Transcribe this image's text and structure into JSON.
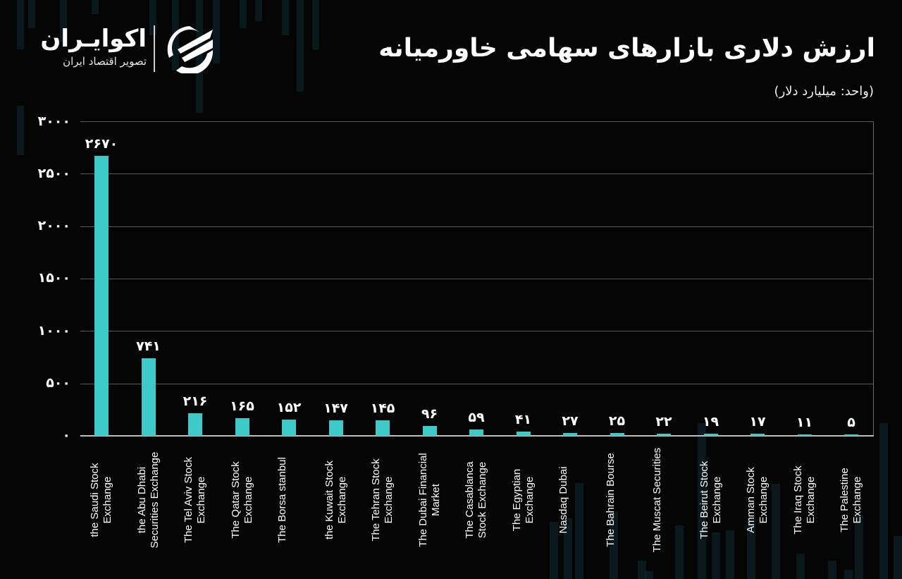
{
  "header": {
    "title": "ارزش دلاری بازارهای سهامی خاورمیانه",
    "subtitle": "(واحد: میلیارد دلار)"
  },
  "logo": {
    "name": "اکوایـران",
    "tagline": "تصویر اقتصاد ایران",
    "icon": "ecoiran-swoosh-logo-icon"
  },
  "colors": {
    "background": "#050505",
    "bar": "#3ec9c9",
    "text": "#ffffff",
    "grid": "#5a5a5a"
  },
  "yaxis": {
    "ticks": [
      {
        "value": 3000,
        "label": "۳۰۰۰"
      },
      {
        "value": 2500,
        "label": "۲۵۰۰"
      },
      {
        "value": 2000,
        "label": "۲۰۰۰"
      },
      {
        "value": 1500,
        "label": "۱۵۰۰"
      },
      {
        "value": 1000,
        "label": "۱۰۰۰"
      },
      {
        "value": 500,
        "label": "۵۰۰"
      },
      {
        "value": 0,
        "label": "۰"
      }
    ]
  },
  "bars": [
    {
      "name": "the Saudi Stock Exchange",
      "value": 2670,
      "label": "۲۶۷۰"
    },
    {
      "name": "the Abu Dhabi Securities Exchange",
      "value": 741,
      "label": "۷۴۱"
    },
    {
      "name": "The Tel Aviv Stock Exchange",
      "value": 216,
      "label": "۲۱۶"
    },
    {
      "name": "The Qatar Stock Exchange",
      "value": 165,
      "label": "۱۶۵"
    },
    {
      "name": "The Borsa stanbul",
      "value": 152,
      "label": "۱۵۲"
    },
    {
      "name": "the Kuwait Stock Exchange",
      "value": 147,
      "label": "۱۴۷"
    },
    {
      "name": "The Tehran Stock Exchange",
      "value": 145,
      "label": "۱۴۵"
    },
    {
      "name": "The Dubai Financial Market",
      "value": 96,
      "label": "۹۶"
    },
    {
      "name": "The Casablanca Stock Exchange",
      "value": 59,
      "label": "۵۹"
    },
    {
      "name": "The Egyptian Exchange",
      "value": 41,
      "label": "۴۱"
    },
    {
      "name": "Nasdaq Dubai",
      "value": 27,
      "label": "۲۷"
    },
    {
      "name": "The Bahrain Bourse",
      "value": 25,
      "label": "۲۵"
    },
    {
      "name": "The Muscat Securities",
      "value": 22,
      "label": "۲۲"
    },
    {
      "name": "The Beirut Stock Exchange",
      "value": 19,
      "label": "۱۹"
    },
    {
      "name": "Amman Stock Exchange",
      "value": 17,
      "label": "۱۷"
    },
    {
      "name": "The Iraq Stock Exchange",
      "value": 11,
      "label": "۱۱"
    },
    {
      "name": "The Palestine Exchange",
      "value": 5,
      "label": "۵"
    }
  ],
  "chart_data": {
    "type": "bar",
    "title": "ارزش دلاری بازارهای سهامی خاورمیانه",
    "subtitle": "(واحد: میلیارد دلار)",
    "xlabel": "",
    "ylabel": "",
    "ylim": [
      0,
      3000
    ],
    "yticks": [
      0,
      500,
      1000,
      1500,
      2000,
      2500,
      3000
    ],
    "grid": true,
    "legend": null,
    "categories": [
      "the Saudi Stock Exchange",
      "the Abu Dhabi Securities Exchange",
      "The Tel Aviv Stock Exchange",
      "The Qatar Stock Exchange",
      "The Borsa stanbul",
      "the Kuwait Stock Exchange",
      "The Tehran Stock Exchange",
      "The Dubai Financial Market",
      "The Casablanca Stock Exchange",
      "The Egyptian Exchange",
      "Nasdaq Dubai",
      "The Bahrain Bourse",
      "The Muscat Securities",
      "The Beirut Stock Exchange",
      "Amman Stock Exchange",
      "The Iraq Stock Exchange",
      "The Palestine Exchange"
    ],
    "values": [
      2670,
      741,
      216,
      165,
      152,
      147,
      145,
      96,
      59,
      41,
      27,
      25,
      22,
      19,
      17,
      11,
      5
    ],
    "unit": "billion USD"
  }
}
